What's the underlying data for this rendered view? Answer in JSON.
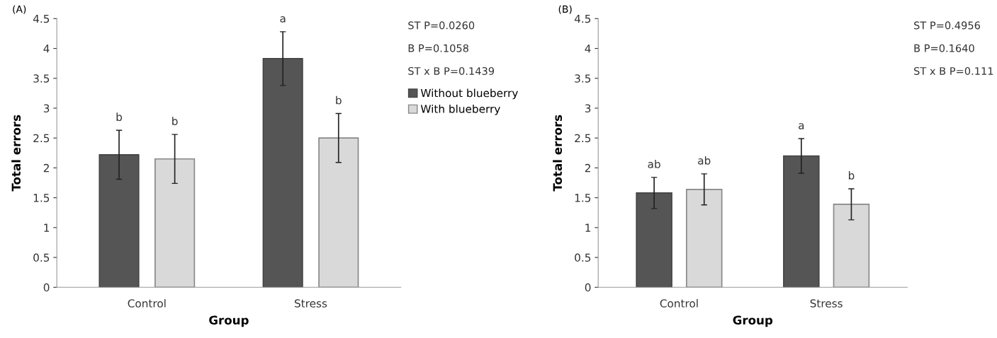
{
  "chart_data": [
    {
      "type": "bar",
      "title": "(A)",
      "xlabel": "Group",
      "ylabel": "Total errors",
      "categories": [
        "Control",
        "Stress"
      ],
      "series": [
        {
          "name": "Without blueberry",
          "color": "#555555",
          "values": [
            2.22,
            3.83
          ],
          "errors": [
            0.41,
            0.45
          ]
        },
        {
          "name": "With blueberry",
          "color": "#d9d9d9",
          "values": [
            2.15,
            2.5
          ],
          "errors": [
            0.41,
            0.41
          ]
        }
      ],
      "ylim": [
        0,
        4.5
      ],
      "yticks": [
        0,
        0.5,
        1,
        1.5,
        2,
        2.5,
        3,
        3.5,
        4,
        4.5
      ],
      "grid": false,
      "legend": "right",
      "annotations": [
        "b",
        "b",
        "a",
        "b",
        "ST P=0.0260",
        "B P=0.1058",
        "ST x B P=0.1439"
      ]
    },
    {
      "type": "bar",
      "title": "(B)",
      "xlabel": "Group",
      "ylabel": "Total errors",
      "categories": [
        "Control",
        "Stress"
      ],
      "series": [
        {
          "color": "#555555",
          "values": [
            1.58,
            2.2
          ],
          "errors": [
            0.26,
            0.29
          ]
        },
        {
          "color": "#d9d9d9",
          "values": [
            1.64,
            1.39
          ],
          "errors": [
            0.26,
            0.26
          ]
        }
      ],
      "ylim": [
        0,
        4.5
      ],
      "yticks": [
        0,
        0.5,
        1,
        1.5,
        2,
        2.5,
        3,
        3.5,
        4,
        4.5
      ],
      "grid": false,
      "legend": false,
      "annotations": [
        "ab",
        "ab",
        "a",
        "b",
        "ST P=0.4956",
        "B P=0.1640",
        "ST x B P=0.111"
      ]
    }
  ]
}
